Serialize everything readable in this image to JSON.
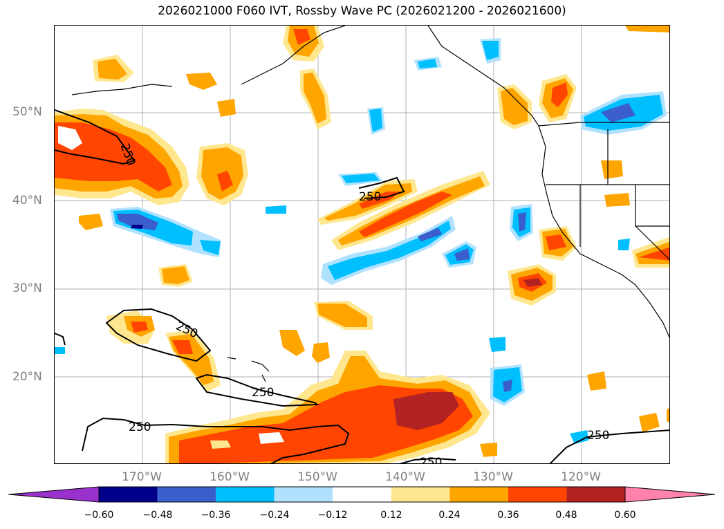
{
  "title": "2026021000 F060 IVT, Rossby Wave PC (2026021200 - 2026021600)",
  "lat_labels": [
    "50°N",
    "40°N",
    "30°N",
    "20°N"
  ],
  "lon_labels": [
    "170°W",
    "160°W",
    "150°W",
    "140°W",
    "130°W",
    "120°W"
  ],
  "contour_label": "250",
  "colorbar": {
    "ticks": [
      "−0.60",
      "−0.48",
      "−0.36",
      "−0.24",
      "−0.12",
      "0.12",
      "0.24",
      "0.36",
      "0.48",
      "0.60"
    ],
    "colors": [
      "#9932cc",
      "#00008b",
      "#3a5fcd",
      "#00bfff",
      "#b0e2ff",
      "#ffffff",
      "#ffe78f",
      "#ffa500",
      "#ff4500",
      "#b22222",
      "#ff82ab"
    ]
  }
}
